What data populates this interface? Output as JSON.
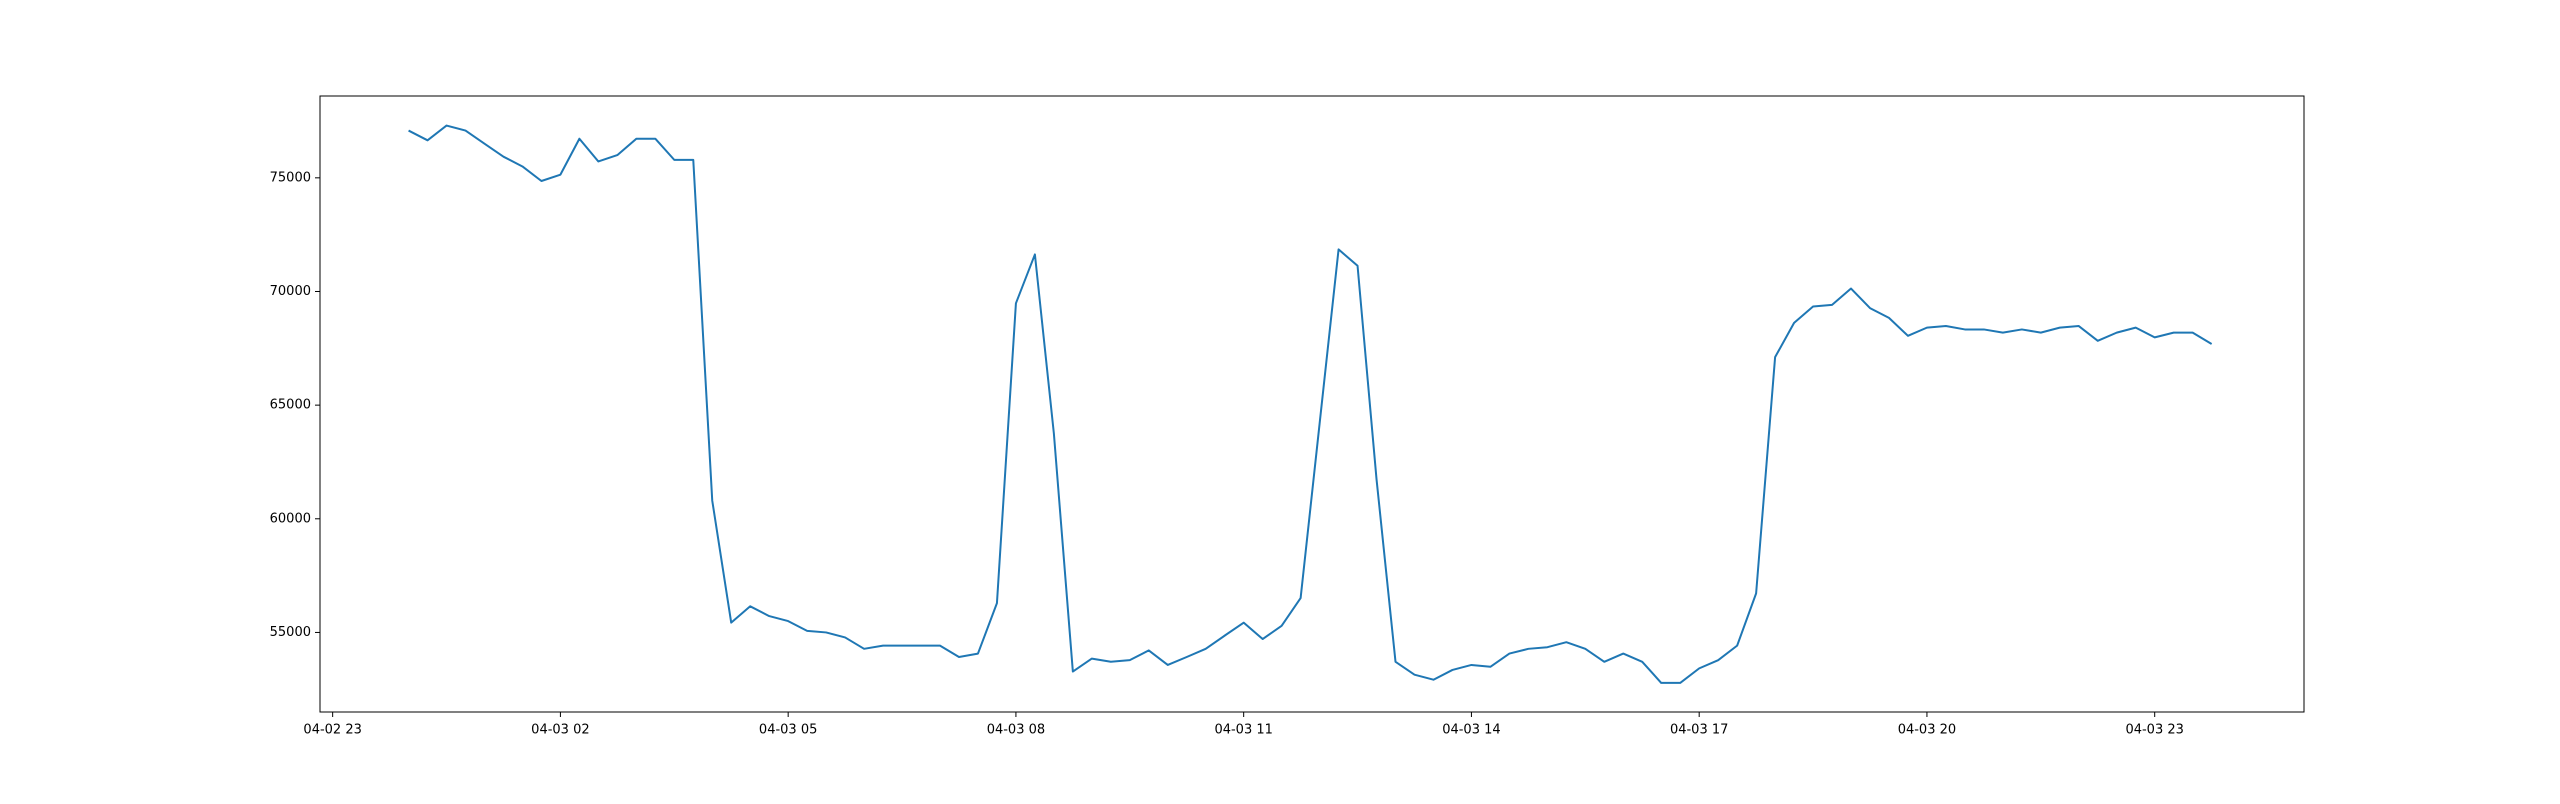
{
  "chart_data": {
    "type": "line",
    "x": [
      "04-03 00:00",
      "04-03 00:15",
      "04-03 00:30",
      "04-03 00:45",
      "04-03 01:00",
      "04-03 01:15",
      "04-03 01:30",
      "04-03 01:45",
      "04-03 02:00",
      "04-03 02:15",
      "04-03 02:30",
      "04-03 02:45",
      "04-03 03:00",
      "04-03 03:15",
      "04-03 03:30",
      "04-03 03:45",
      "04-03 04:00",
      "04-03 04:15",
      "04-03 04:30",
      "04-03 04:45",
      "04-03 05:00",
      "04-03 05:15",
      "04-03 05:30",
      "04-03 05:45",
      "04-03 06:00",
      "04-03 06:15",
      "04-03 06:30",
      "04-03 06:45",
      "04-03 07:00",
      "04-03 07:15",
      "04-03 07:30",
      "04-03 07:45",
      "04-03 08:00",
      "04-03 08:15",
      "04-03 08:30",
      "04-03 08:45",
      "04-03 09:00",
      "04-03 09:15",
      "04-03 09:30",
      "04-03 09:45",
      "04-03 10:00",
      "04-03 10:15",
      "04-03 10:30",
      "04-03 10:45",
      "04-03 11:00",
      "04-03 11:15",
      "04-03 11:30",
      "04-03 11:45",
      "04-03 12:00",
      "04-03 12:15",
      "04-03 12:30",
      "04-03 12:45",
      "04-03 13:00",
      "04-03 13:15",
      "04-03 13:30",
      "04-03 13:45",
      "04-03 14:00",
      "04-03 14:15",
      "04-03 14:30",
      "04-03 14:45",
      "04-03 15:00",
      "04-03 15:15",
      "04-03 15:30",
      "04-03 15:45",
      "04-03 16:00",
      "04-03 16:15",
      "04-03 16:30",
      "04-03 16:45",
      "04-03 17:00",
      "04-03 17:15",
      "04-03 17:30",
      "04-03 17:45",
      "04-03 18:00",
      "04-03 18:15",
      "04-03 18:30",
      "04-03 18:45",
      "04-03 19:00",
      "04-03 19:15",
      "04-03 19:30",
      "04-03 19:45",
      "04-03 20:00",
      "04-03 20:15",
      "04-03 20:30",
      "04-03 20:45",
      "04-03 21:00",
      "04-03 21:15",
      "04-03 21:30",
      "04-03 21:45",
      "04-03 22:00",
      "04-03 22:15",
      "04-03 22:30",
      "04-03 22:45",
      "04-03 23:00",
      "04-03 23:15",
      "04-03 23:30",
      "04-03 23:45"
    ],
    "series": [
      {
        "color": "#1f77b4",
        "values": [
          77080,
          76650,
          77300,
          77080,
          76500,
          75930,
          75500,
          74860,
          75140,
          76720,
          75720,
          76000,
          76720,
          76720,
          75790,
          75790,
          60800,
          55430,
          56150,
          55720,
          55500,
          55070,
          55000,
          54780,
          54280,
          54420,
          54420,
          54420,
          54420,
          53920,
          54070,
          56290,
          69480,
          71630,
          63750,
          53280,
          53850,
          53710,
          53780,
          54210,
          53570,
          53920,
          54280,
          54860,
          55430,
          54710,
          55290,
          56510,
          64180,
          71850,
          71130,
          61740,
          53710,
          53140,
          52920,
          53350,
          53570,
          53490,
          54070,
          54280,
          54350,
          54570,
          54280,
          53710,
          54070,
          53710,
          52780,
          52780,
          53420,
          53780,
          54420,
          56720,
          67110,
          68620,
          69340,
          69410,
          70130,
          69270,
          68840,
          68050,
          68410,
          68480,
          68330,
          68330,
          68190,
          68330,
          68190,
          68410,
          68480,
          67830,
          68190,
          68410,
          67980,
          68190,
          68190,
          67690
        ]
      }
    ],
    "xlim": [
      "04-02 22:50",
      "04-04 00:58"
    ],
    "xticks": [
      {
        "value": "04-02 23:00",
        "label": "04-02 23"
      },
      {
        "value": "04-03 02:00",
        "label": "04-03 02"
      },
      {
        "value": "04-03 05:00",
        "label": "04-03 05"
      },
      {
        "value": "04-03 08:00",
        "label": "04-03 08"
      },
      {
        "value": "04-03 11:00",
        "label": "04-03 11"
      },
      {
        "value": "04-03 14:00",
        "label": "04-03 14"
      },
      {
        "value": "04-03 17:00",
        "label": "04-03 17"
      },
      {
        "value": "04-03 20:00",
        "label": "04-03 20"
      },
      {
        "value": "04-03 23:00",
        "label": "04-03 23"
      }
    ],
    "ylim": [
      51500,
      78600
    ],
    "yticks": [
      55000,
      60000,
      65000,
      70000,
      75000
    ],
    "grid": false
  }
}
